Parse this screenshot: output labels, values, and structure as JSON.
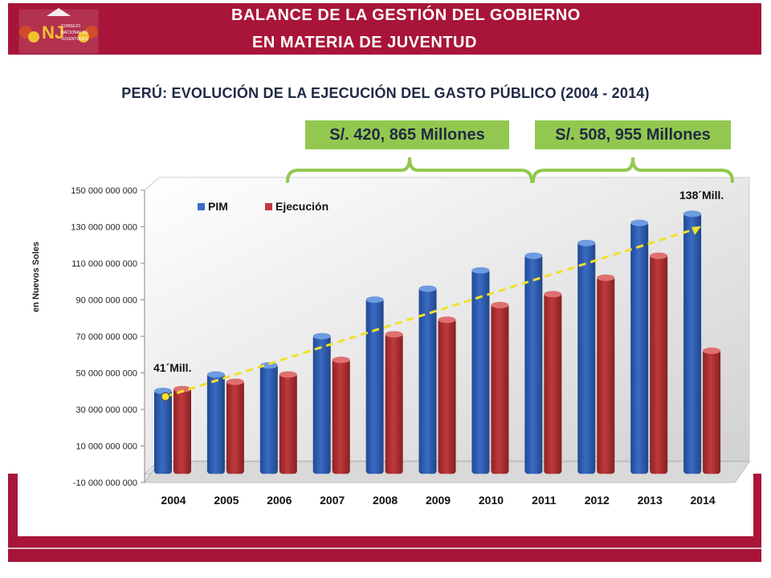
{
  "header": {
    "title_line1": "BALANCE DE LA GESTIÓN DEL GOBIERNO",
    "title_line2": "EN MATERIA DE JUVENTUD",
    "logo_text": [
      "CONSEJO",
      "NACIONAL DE",
      "JUVENTUDES"
    ],
    "logo_letters": "NJ"
  },
  "colors": {
    "brand": "#a81538",
    "callout": "#92c84f",
    "pim": "#3a6bc4",
    "ejecucion": "#c0393d",
    "trend": "#f0e12a"
  },
  "callouts": {
    "left": "S/. 420, 865 Millones",
    "right": "S/. 508, 955 Millones"
  },
  "chart_data": {
    "type": "bar",
    "title": "PERÚ: EVOLUCIÓN DE LA EJECUCIÓN DEL GASTO PÚBLICO (2004 - 2014)",
    "ylabel": "en Nuevos Soles",
    "xlabel": "",
    "categories": [
      "2004",
      "2005",
      "2006",
      "2007",
      "2008",
      "2009",
      "2010",
      "2011",
      "2012",
      "2013",
      "2014"
    ],
    "series": [
      {
        "name": "PIM",
        "values": [
          41000000000,
          50000000000,
          55000000000,
          71000000000,
          91000000000,
          97000000000,
          107000000000,
          115000000000,
          122000000000,
          133000000000,
          138000000000
        ]
      },
      {
        "name": "Ejecución",
        "values": [
          42000000000,
          46000000000,
          50000000000,
          58000000000,
          72000000000,
          80000000000,
          88000000000,
          94000000000,
          103000000000,
          115000000000,
          63000000000
        ]
      }
    ],
    "ylim": [
      -10000000000,
      150000000000
    ],
    "yticks": [
      -10000000000,
      10000000000,
      30000000000,
      50000000000,
      70000000000,
      90000000000,
      110000000000,
      130000000000,
      150000000000
    ],
    "ytick_labels": [
      "-10 000 000 000",
      "10 000 000 000",
      "30 000 000 000",
      "50 000 000 000",
      "70 000 000 000",
      "90 000 000 000",
      "110 000 000 000",
      "130 000 000 000",
      "150 000 000 000"
    ],
    "annotations": [
      {
        "text": "41´Mill.",
        "category": "2004"
      },
      {
        "text": "138´Mill.",
        "category": "2014"
      }
    ],
    "trend_line": {
      "from": {
        "category": "2004",
        "value": 37000000000
      },
      "to": {
        "category": "2014",
        "value": 129000000000
      }
    },
    "legend_position": "top-left",
    "grid": false
  }
}
